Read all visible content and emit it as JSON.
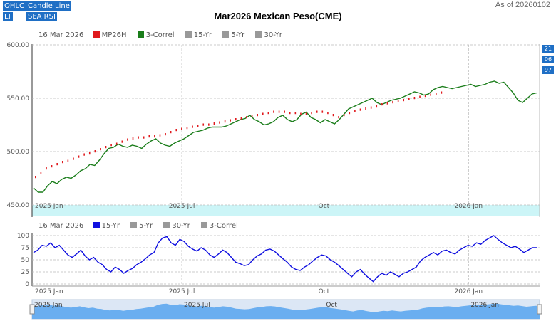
{
  "toolbar": {
    "buttons": [
      "OHLC",
      "Candle",
      "Line"
    ],
    "buttons2": [
      "LT",
      "SEA RSI"
    ]
  },
  "title": "Mar2026 Mexican Peso(CME)",
  "as_of": "As of 20260102",
  "right_badges": [
    "21",
    "06",
    "97"
  ],
  "legend_top": {
    "date": "16 Mar 2026",
    "items": [
      {
        "label": "MP26H",
        "color": "#e0191d"
      },
      {
        "label": "3-Correl",
        "color": "#1a7d1a"
      },
      {
        "label": "15-Yr",
        "color": "#999999"
      },
      {
        "label": "5-Yr",
        "color": "#999999"
      },
      {
        "label": "30-Yr",
        "color": "#999999"
      }
    ]
  },
  "legend_bottom": {
    "date": "16 Mar 2026",
    "items": [
      {
        "label": "15-Yr",
        "color": "#1010e0"
      },
      {
        "label": "5-Yr",
        "color": "#999999"
      },
      {
        "label": "30-Yr",
        "color": "#999999"
      },
      {
        "label": "3-Correl",
        "color": "#999999"
      }
    ]
  },
  "chart_data": [
    {
      "type": "line",
      "name": "price",
      "y_ticks": [
        "600.00",
        "550.00",
        "500.00",
        "450.00"
      ],
      "ylim": [
        450,
        600
      ],
      "x_ticks": [
        "2025 Jan",
        "2025 Jul",
        "Oct",
        "2026 Jan"
      ],
      "x_tick_pos": [
        0,
        0.295,
        0.575,
        0.86
      ],
      "series": [
        {
          "name": "3-Correl",
          "color": "#1a7d1a",
          "values": [
            466,
            462,
            462,
            468,
            472,
            470,
            474,
            476,
            475,
            478,
            482,
            484,
            488,
            487,
            492,
            498,
            503,
            504,
            507,
            505,
            504,
            506,
            505,
            503,
            507,
            510,
            512,
            508,
            506,
            505,
            508,
            510,
            512,
            515,
            518,
            519,
            520,
            522,
            523,
            523,
            523,
            524,
            526,
            528,
            530,
            531,
            534,
            530,
            528,
            525,
            526,
            528,
            532,
            534,
            530,
            528,
            530,
            535,
            537,
            532,
            530,
            527,
            530,
            528,
            526,
            530,
            535,
            540,
            542,
            544,
            546,
            548,
            550,
            546,
            544,
            546,
            548,
            549,
            550,
            552,
            554,
            556,
            555,
            553,
            554,
            558,
            560,
            561,
            560,
            559,
            560,
            561,
            562,
            563,
            561,
            562,
            563,
            565,
            566,
            564,
            565,
            560,
            555,
            548,
            546,
            550,
            554,
            555
          ]
        },
        {
          "name": "MP26H",
          "color": "#e0191d",
          "values": [
            476,
            480,
            484,
            486,
            488,
            490,
            491,
            493,
            495,
            497,
            498,
            500,
            502,
            504,
            506,
            507,
            509,
            511,
            512,
            513,
            513,
            514,
            514,
            515,
            516,
            518,
            520,
            521,
            522,
            523,
            524,
            525,
            525,
            526,
            527,
            528,
            529,
            530,
            531,
            532,
            533,
            534,
            535,
            536,
            537,
            537,
            537,
            536,
            536,
            535,
            535,
            536,
            537,
            537,
            536,
            534,
            532,
            534,
            536,
            538,
            539,
            540,
            541,
            542,
            544,
            545,
            546,
            547,
            548,
            549,
            550,
            551,
            552,
            553,
            554,
            555
          ]
        }
      ]
    },
    {
      "type": "line",
      "name": "rsi",
      "y_ticks": [
        "100",
        "75",
        "50",
        "25",
        "0"
      ],
      "ylim": [
        0,
        100
      ],
      "x_ticks": [
        "2025 Jan",
        "2025 Jul",
        "Oct",
        "2026 Jan"
      ],
      "x_tick_pos": [
        0,
        0.295,
        0.575,
        0.86
      ],
      "series": [
        {
          "name": "15-Yr",
          "color": "#1010e0",
          "values": [
            65,
            70,
            80,
            78,
            85,
            75,
            80,
            70,
            60,
            55,
            62,
            70,
            58,
            50,
            55,
            45,
            40,
            30,
            25,
            35,
            30,
            22,
            28,
            32,
            40,
            45,
            52,
            60,
            65,
            85,
            95,
            98,
            85,
            80,
            92,
            88,
            78,
            72,
            68,
            75,
            70,
            60,
            55,
            62,
            70,
            65,
            55,
            45,
            42,
            38,
            40,
            50,
            58,
            62,
            70,
            72,
            68,
            60,
            52,
            45,
            35,
            30,
            28,
            35,
            40,
            48,
            55,
            60,
            58,
            50,
            45,
            38,
            30,
            22,
            15,
            25,
            30,
            20,
            12,
            5,
            15,
            22,
            18,
            25,
            20,
            15,
            22,
            25,
            30,
            35,
            48,
            55,
            60,
            65,
            60,
            68,
            70,
            65,
            62,
            70,
            75,
            80,
            78,
            85,
            82,
            90,
            95,
            100,
            92,
            85,
            80,
            75,
            78,
            72,
            65,
            70,
            75,
            75
          ]
        }
      ]
    }
  ]
}
